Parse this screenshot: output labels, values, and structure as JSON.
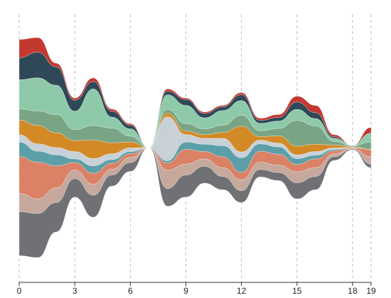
{
  "chart_data": {
    "type": "streamgraph",
    "x": [
      0,
      1,
      2,
      3,
      4,
      5,
      6,
      7,
      8,
      9,
      10,
      11,
      12,
      13,
      14,
      15,
      16,
      17,
      18,
      19
    ],
    "xlim": [
      0,
      19
    ],
    "xticks": [
      0,
      3,
      6,
      9,
      12,
      15,
      18,
      19
    ],
    "grid": true,
    "series": [
      {
        "color": "#c4392f",
        "values": [
          25,
          20,
          5,
          3,
          5,
          3,
          2,
          0,
          3,
          2,
          2,
          2,
          3,
          3,
          4,
          8,
          10,
          3,
          0,
          8
        ]
      },
      {
        "color": "#2f4858",
        "values": [
          30,
          35,
          25,
          15,
          10,
          8,
          5,
          0,
          5,
          8,
          6,
          5,
          8,
          4,
          5,
          10,
          8,
          2,
          0,
          0
        ]
      },
      {
        "color": "#8ecaa9",
        "values": [
          40,
          45,
          40,
          25,
          50,
          15,
          10,
          0,
          20,
          25,
          15,
          20,
          20,
          10,
          10,
          15,
          10,
          4,
          1,
          12
        ]
      },
      {
        "color": "#7aa585",
        "values": [
          15,
          20,
          25,
          15,
          20,
          20,
          8,
          0,
          5,
          10,
          8,
          10,
          15,
          8,
          10,
          35,
          25,
          5,
          1,
          10
        ]
      },
      {
        "color": "#d38a26",
        "values": [
          20,
          25,
          20,
          15,
          25,
          15,
          8,
          0,
          5,
          5,
          5,
          8,
          35,
          5,
          10,
          12,
          10,
          4,
          1,
          0
        ]
      },
      {
        "color": "#c8d0d8",
        "values": [
          10,
          10,
          10,
          10,
          10,
          8,
          5,
          0,
          60,
          10,
          8,
          10,
          8,
          5,
          5,
          5,
          5,
          2,
          0,
          0
        ]
      },
      {
        "color": "#5c9fa8",
        "values": [
          20,
          15,
          15,
          5,
          10,
          5,
          3,
          0,
          3,
          10,
          10,
          15,
          20,
          10,
          10,
          8,
          5,
          2,
          0,
          0
        ]
      },
      {
        "color": "#db8166",
        "values": [
          50,
          50,
          30,
          10,
          15,
          8,
          5,
          0,
          10,
          20,
          10,
          15,
          10,
          15,
          15,
          10,
          12,
          4,
          1,
          10
        ]
      },
      {
        "color": "#c6a89d",
        "values": [
          25,
          20,
          20,
          12,
          15,
          8,
          7,
          0,
          25,
          15,
          10,
          12,
          15,
          10,
          10,
          15,
          12,
          4,
          1,
          10
        ]
      },
      {
        "color": "#6f7175",
        "values": [
          60,
          60,
          40,
          25,
          30,
          15,
          12,
          0,
          24,
          30,
          23,
          18,
          16,
          10,
          11,
          22,
          18,
          5,
          1,
          5
        ]
      }
    ]
  }
}
